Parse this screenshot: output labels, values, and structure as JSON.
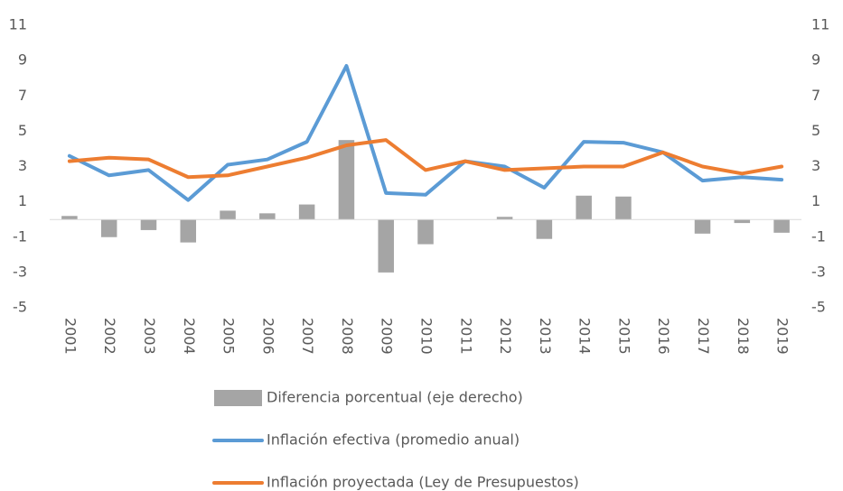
{
  "chart_data": {
    "type": "combo",
    "categories": [
      "2001",
      "2002",
      "2003",
      "2004",
      "2005",
      "2006",
      "2007",
      "2008",
      "2009",
      "2010",
      "2011",
      "2012",
      "2013",
      "2014",
      "2015",
      "2016",
      "2017",
      "2018",
      "2019"
    ],
    "series": [
      {
        "name": "Diferencia porcentual (eje derecho)",
        "type": "bar",
        "axis": "y2",
        "color": "#a5a5a5",
        "values": [
          0.2,
          -1.0,
          -0.6,
          -1.3,
          0.5,
          0.35,
          0.85,
          4.5,
          -3.0,
          -1.4,
          0,
          0.15,
          -1.1,
          1.35,
          1.3,
          0,
          -0.8,
          -0.2,
          -0.75
        ]
      },
      {
        "name": "Inflación efectiva (promedio anual)",
        "type": "line",
        "color": "#5b9bd5",
        "values": [
          3.6,
          2.5,
          2.8,
          1.1,
          3.1,
          3.4,
          4.4,
          8.7,
          1.5,
          1.4,
          3.3,
          3.0,
          1.8,
          4.4,
          4.35,
          3.8,
          2.2,
          2.4,
          2.25
        ]
      },
      {
        "name": "Inflación proyectada (Ley de Presupuestos)",
        "type": "line",
        "color": "#ed7d31",
        "values": [
          3.3,
          3.5,
          3.4,
          2.4,
          2.5,
          3.0,
          3.5,
          4.2,
          4.5,
          2.8,
          3.3,
          2.8,
          2.9,
          3.0,
          3.0,
          3.8,
          3.0,
          2.6,
          3.0
        ]
      }
    ],
    "ylim": [
      -5,
      11
    ],
    "yticks": [
      -5,
      -3,
      -1,
      1,
      3,
      5,
      7,
      9,
      11
    ],
    "y2lim": [
      -5,
      11
    ],
    "y2ticks": [
      -5,
      -3,
      -1,
      1,
      3,
      5,
      7,
      9,
      11
    ],
    "grid": false
  }
}
